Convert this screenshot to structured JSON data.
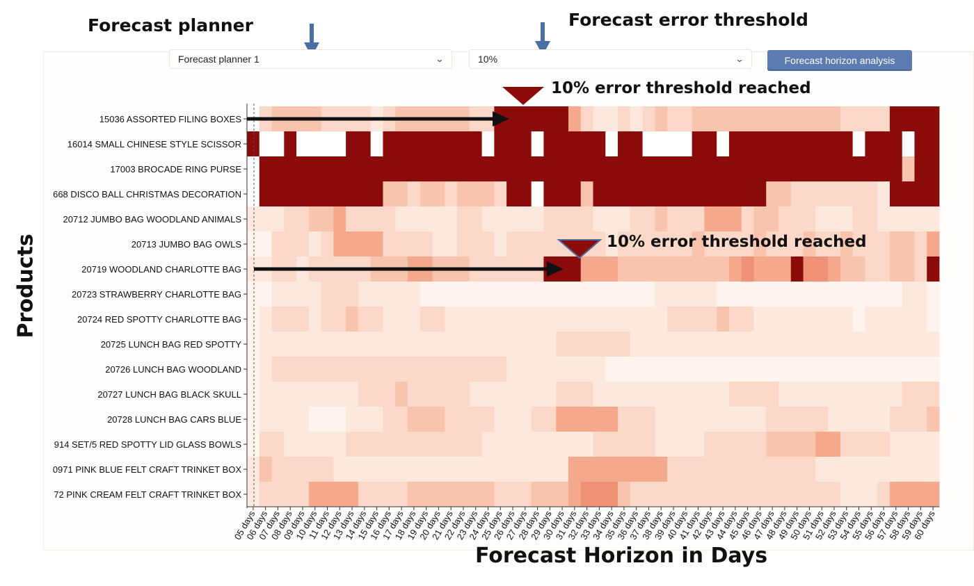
{
  "annotations": {
    "planner_heading": "Forecast planner",
    "threshold_heading": "Forecast error threshold",
    "threshold_callout_1": "10% error threshold reached",
    "threshold_callout_2": "10% error threshold reached",
    "y_axis_label": "Products",
    "x_axis_label": "Forecast Horizon in Days"
  },
  "controls": {
    "planner_select": "Forecast planner 1",
    "threshold_select": "10%",
    "analysis_button": "Forecast horizon analysis"
  },
  "icons": {
    "dropdown": "chevron-down-icon",
    "pointer": "down-arrow-icon"
  },
  "colors": {
    "threshold_reached": "#8b0a0a",
    "low_error": "#fff5f0",
    "annotation_arrow": "#4a6fa5"
  },
  "chart_data": {
    "type": "heatmap",
    "xlabel": "Forecast Horizon in Days",
    "ylabel": "Products",
    "x": [
      "05 days",
      "06 days",
      "07 days",
      "08 days",
      "09 days",
      "10 days",
      "11 days",
      "12 days",
      "13 days",
      "14 days",
      "15 days",
      "16 days",
      "17 days",
      "18 days",
      "19 days",
      "20 days",
      "21 days",
      "22 days",
      "23 days",
      "24 days",
      "25 days",
      "26 days",
      "27 days",
      "28 days",
      "29 days",
      "30 days",
      "31 days",
      "32 days",
      "33 days",
      "34 days",
      "35 days",
      "36 days",
      "37 days",
      "38 days",
      "39 days",
      "40 days",
      "41 days",
      "42 days",
      "43 days",
      "44 days",
      "45 days",
      "46 days",
      "47 days",
      "48 days",
      "49 days",
      "50 days",
      "51 days",
      "52 days",
      "53 days",
      "54 days",
      "55 days",
      "56 days",
      "57 days",
      "58 days",
      "59 days",
      "60 days"
    ],
    "y": [
      "15036 ASSORTED FILING BOXES",
      "16014 SMALL CHINESE STYLE SCISSOR",
      "17003 BROCADE RING PURSE",
      "668 DISCO BALL CHRISTMAS DECORATION",
      "20712 JUMBO BAG WOODLAND ANIMALS",
      "20713 JUMBO BAG OWLS",
      "20719 WOODLAND CHARLOTTE BAG",
      "20723 STRAWBERRY CHARLOTTE BAG",
      "20724 RED SPOTTY CHARLOTTE BAG",
      "20725 LUNCH BAG RED SPOTTY",
      "20726 LUNCH BAG WOODLAND",
      "20727 LUNCH BAG BLACK SKULL",
      "20728 LUNCH BAG CARS BLUE",
      "914 SET/5 RED SPOTTY LID GLASS BOWLS",
      "0971 PINK BLUE FELT CRAFT TRINKET BOX",
      "72 PINK CREAM FELT CRAFT TRINKET BOX"
    ],
    "value_scale": "0 = low forecast error, 10 = at or above 10% error threshold",
    "z": [
      [
        0,
        3,
        4,
        4,
        4,
        4,
        3,
        3,
        3,
        3,
        2,
        3,
        4,
        4,
        4,
        4,
        4,
        4,
        3,
        3,
        10,
        10,
        10,
        10,
        10,
        10,
        5,
        3,
        2,
        2,
        3,
        2,
        3,
        4,
        3,
        3,
        4,
        4,
        4,
        4,
        4,
        4,
        4,
        4,
        4,
        4,
        4,
        4,
        3,
        3,
        3,
        3,
        10,
        10,
        10,
        10
      ],
      [
        10,
        0,
        0,
        10,
        0,
        0,
        0,
        0,
        10,
        10,
        0,
        10,
        10,
        10,
        10,
        10,
        10,
        10,
        10,
        0,
        10,
        10,
        10,
        0,
        10,
        10,
        10,
        10,
        10,
        0,
        10,
        10,
        0,
        0,
        0,
        0,
        10,
        10,
        0,
        10,
        10,
        10,
        10,
        10,
        10,
        10,
        10,
        10,
        10,
        0,
        10,
        10,
        10,
        0,
        10,
        10
      ],
      [
        0,
        10,
        10,
        10,
        10,
        10,
        10,
        10,
        10,
        10,
        10,
        10,
        10,
        10,
        10,
        10,
        10,
        10,
        10,
        10,
        10,
        10,
        10,
        10,
        10,
        10,
        10,
        10,
        10,
        10,
        10,
        10,
        10,
        10,
        10,
        10,
        10,
        10,
        10,
        10,
        10,
        10,
        10,
        10,
        10,
        10,
        10,
        10,
        10,
        10,
        10,
        10,
        10,
        4,
        10,
        10
      ],
      [
        0,
        10,
        10,
        10,
        10,
        10,
        10,
        10,
        10,
        10,
        10,
        4,
        4,
        3,
        4,
        4,
        3,
        4,
        4,
        4,
        3,
        10,
        10,
        0,
        10,
        10,
        10,
        4,
        10,
        10,
        10,
        10,
        10,
        10,
        10,
        10,
        10,
        10,
        10,
        10,
        10,
        10,
        4,
        4,
        3,
        3,
        3,
        3,
        3,
        3,
        3,
        2,
        10,
        10,
        10,
        10
      ],
      [
        2,
        2,
        2,
        3,
        3,
        4,
        4,
        5,
        3,
        3,
        3,
        3,
        2,
        2,
        2,
        2,
        2,
        3,
        3,
        2,
        2,
        2,
        2,
        2,
        3,
        3,
        3,
        3,
        2,
        2,
        2,
        3,
        3,
        4,
        3,
        3,
        3,
        5,
        5,
        5,
        3,
        4,
        4,
        3,
        3,
        3,
        2,
        2,
        2,
        3,
        3,
        2,
        2,
        2,
        2,
        2
      ],
      [
        1,
        1,
        3,
        3,
        3,
        2,
        3,
        5,
        5,
        5,
        5,
        3,
        3,
        3,
        3,
        2,
        2,
        3,
        3,
        3,
        2,
        3,
        3,
        3,
        3,
        3,
        3,
        3,
        3,
        2,
        3,
        3,
        3,
        3,
        3,
        3,
        4,
        3,
        3,
        3,
        3,
        4,
        3,
        3,
        3,
        4,
        3,
        3,
        4,
        3,
        3,
        3,
        4,
        4,
        3,
        5
      ],
      [
        2,
        2,
        3,
        3,
        2,
        3,
        3,
        3,
        3,
        3,
        4,
        4,
        4,
        5,
        5,
        4,
        4,
        4,
        3,
        3,
        3,
        3,
        3,
        3,
        10,
        10,
        10,
        5,
        5,
        5,
        4,
        4,
        4,
        4,
        4,
        4,
        4,
        4,
        4,
        5,
        6,
        5,
        5,
        5,
        10,
        6,
        6,
        5,
        4,
        4,
        3,
        3,
        4,
        4,
        3,
        10
      ],
      [
        1,
        1,
        2,
        2,
        2,
        2,
        3,
        3,
        3,
        2,
        2,
        2,
        2,
        2,
        1,
        1,
        1,
        1,
        1,
        1,
        1,
        1,
        1,
        1,
        1,
        1,
        1,
        1,
        1,
        1,
        1,
        1,
        1,
        2,
        2,
        2,
        2,
        2,
        1,
        1,
        1,
        1,
        1,
        1,
        1,
        1,
        1,
        1,
        1,
        1,
        1,
        1,
        1,
        2,
        2,
        1
      ],
      [
        1,
        2,
        3,
        3,
        3,
        2,
        3,
        3,
        4,
        3,
        3,
        2,
        2,
        2,
        3,
        3,
        2,
        2,
        2,
        2,
        2,
        2,
        2,
        2,
        2,
        2,
        2,
        2,
        2,
        2,
        2,
        2,
        2,
        2,
        3,
        3,
        3,
        3,
        4,
        3,
        3,
        2,
        2,
        2,
        2,
        2,
        2,
        2,
        2,
        1,
        2,
        2,
        2,
        2,
        2,
        1
      ],
      [
        1,
        2,
        2,
        2,
        2,
        2,
        2,
        2,
        2,
        2,
        2,
        2,
        2,
        2,
        2,
        2,
        2,
        2,
        2,
        2,
        2,
        2,
        2,
        2,
        2,
        3,
        3,
        3,
        3,
        3,
        3,
        2,
        2,
        2,
        2,
        2,
        2,
        2,
        2,
        2,
        2,
        2,
        2,
        2,
        2,
        2,
        2,
        2,
        2,
        2,
        2,
        2,
        2,
        2,
        2,
        2
      ],
      [
        1,
        2,
        3,
        3,
        3,
        3,
        3,
        3,
        3,
        3,
        3,
        3,
        3,
        3,
        3,
        3,
        3,
        3,
        3,
        3,
        3,
        2,
        2,
        2,
        2,
        2,
        2,
        2,
        2,
        1,
        1,
        1,
        1,
        1,
        1,
        1,
        1,
        1,
        1,
        1,
        1,
        1,
        1,
        1,
        1,
        1,
        1,
        1,
        1,
        1,
        1,
        1,
        1,
        1,
        1,
        1
      ],
      [
        1,
        2,
        2,
        2,
        2,
        2,
        2,
        2,
        2,
        3,
        3,
        3,
        4,
        3,
        3,
        3,
        3,
        3,
        2,
        2,
        2,
        2,
        2,
        2,
        2,
        3,
        3,
        3,
        2,
        2,
        2,
        2,
        2,
        2,
        2,
        2,
        2,
        2,
        2,
        3,
        3,
        3,
        3,
        2,
        2,
        2,
        2,
        2,
        2,
        2,
        2,
        2,
        2,
        3,
        3,
        3
      ],
      [
        1,
        2,
        2,
        2,
        2,
        1,
        1,
        1,
        2,
        2,
        2,
        3,
        3,
        4,
        4,
        4,
        3,
        3,
        3,
        3,
        2,
        2,
        2,
        3,
        3,
        5,
        5,
        5,
        5,
        5,
        3,
        3,
        3,
        2,
        2,
        2,
        2,
        2,
        2,
        2,
        2,
        2,
        3,
        3,
        3,
        3,
        3,
        2,
        2,
        2,
        2,
        2,
        3,
        3,
        3,
        4
      ],
      [
        1,
        3,
        3,
        2,
        2,
        2,
        2,
        2,
        3,
        3,
        3,
        3,
        3,
        3,
        3,
        3,
        3,
        3,
        3,
        2,
        2,
        2,
        2,
        2,
        2,
        2,
        2,
        2,
        3,
        3,
        3,
        3,
        3,
        2,
        2,
        2,
        2,
        3,
        3,
        3,
        3,
        3,
        4,
        4,
        4,
        4,
        5,
        5,
        3,
        3,
        3,
        3,
        2,
        2,
        2,
        2
      ],
      [
        2,
        4,
        3,
        3,
        3,
        3,
        3,
        2,
        2,
        2,
        2,
        2,
        2,
        2,
        2,
        2,
        2,
        2,
        2,
        2,
        2,
        2,
        2,
        2,
        2,
        2,
        5,
        5,
        5,
        5,
        5,
        5,
        5,
        5,
        3,
        3,
        3,
        3,
        3,
        3,
        3,
        3,
        3,
        3,
        3,
        3,
        2,
        2,
        2,
        2,
        2,
        2,
        2,
        2,
        2,
        2
      ],
      [
        2,
        3,
        3,
        3,
        3,
        5,
        5,
        5,
        5,
        3,
        3,
        3,
        3,
        4,
        4,
        4,
        4,
        4,
        4,
        4,
        3,
        3,
        3,
        4,
        4,
        4,
        5,
        6,
        6,
        6,
        4,
        3,
        3,
        3,
        3,
        3,
        3,
        3,
        3,
        3,
        3,
        3,
        3,
        3,
        3,
        3,
        3,
        3,
        2,
        2,
        2,
        3,
        5,
        5,
        5,
        5
      ]
    ]
  }
}
